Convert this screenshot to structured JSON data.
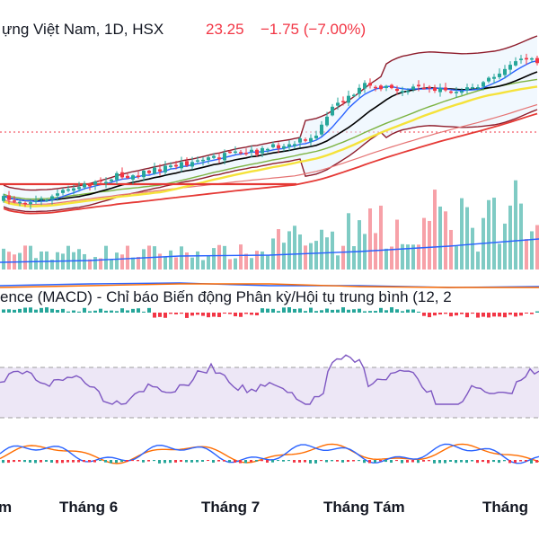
{
  "header": {
    "title": "ựng Việt Nam, 1D, HSX",
    "price": "23.25",
    "change": "−1.75 (−7.00%)"
  },
  "macd_panel": {
    "title": "ence (MACD) - Chỉ báo Biến động Phân kỳ/Hội tụ trung bình (12, 2"
  },
  "colors": {
    "up": "#26a69a",
    "down": "#f23645",
    "volume_up": "#7fcbc4",
    "volume_down": "#f7a1a8",
    "ma_fast": "#2962ff",
    "ma_black": "#000000",
    "ma_yellow": "#f5e23a",
    "ma_green": "#7cb342",
    "ma_red": "#e53935",
    "bollinger": "#8e1c2b",
    "rsi_line": "#7e57c2",
    "rsi_band": "#ede7f6",
    "macd_line": "#2962ff",
    "signal_line": "#ff6d00"
  },
  "chart_data": [
    {
      "type": "candlestick",
      "name": "price",
      "x_labels": [
        "m",
        "Tháng 6",
        "Tháng 7",
        "Tháng Tám",
        "Tháng"
      ],
      "close_start": 10.8,
      "close_end": 23.25,
      "approx_high": 25.0,
      "approx_low": 10.2
    },
    {
      "type": "bar",
      "name": "volume",
      "note": "daily volume bars (green up / red down)"
    },
    {
      "type": "histogram",
      "name": "macd"
    },
    {
      "type": "line",
      "name": "rsi",
      "levels": [
        70,
        30
      ]
    },
    {
      "type": "line",
      "name": "stochastic"
    }
  ]
}
